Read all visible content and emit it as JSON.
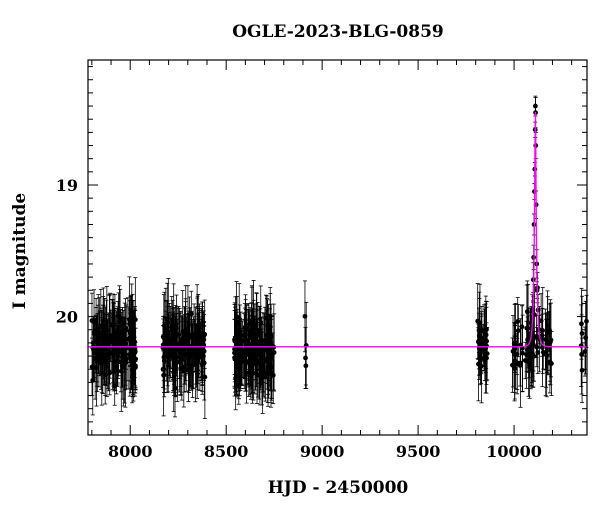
{
  "chart_data": {
    "type": "scatter",
    "title": "OGLE-2023-BLG-0859",
    "xlabel": "HJD - 2450000",
    "ylabel": "I magnitude",
    "xlim": [
      7780,
      10380
    ],
    "ylim": [
      20.9,
      18.05
    ],
    "y_inverted": true,
    "xticks": [
      8000,
      8500,
      9000,
      9500,
      10000
    ],
    "yticks": [
      19,
      20
    ],
    "grid": false,
    "colors": {
      "points": "#000000",
      "model": "#ff00ff"
    },
    "baseline_magnitude": 20.23,
    "seasons": [
      {
        "x_range": [
          7800,
          8030
        ],
        "count": 160
      },
      {
        "x_range": [
          8170,
          8390
        ],
        "count": 150
      },
      {
        "x_range": [
          8540,
          8750
        ],
        "count": 160
      },
      {
        "x_range": [
          8910,
          8920
        ],
        "count": 4
      },
      {
        "x_range": [
          9810,
          9860
        ],
        "count": 30
      },
      {
        "x_range": [
          9990,
          10200
        ],
        "count": 70
      },
      {
        "x_range": [
          10340,
          10380
        ],
        "count": 8
      }
    ],
    "event_points": [
      {
        "x": 10090,
        "y": 20.05
      },
      {
        "x": 10095,
        "y": 19.95
      },
      {
        "x": 10100,
        "y": 19.72
      },
      {
        "x": 10102,
        "y": 19.55
      },
      {
        "x": 10104,
        "y": 19.3
      },
      {
        "x": 10106,
        "y": 19.05
      },
      {
        "x": 10108,
        "y": 18.88
      },
      {
        "x": 10110,
        "y": 18.58
      },
      {
        "x": 10111,
        "y": 18.4
      },
      {
        "x": 10112,
        "y": 18.45
      },
      {
        "x": 10113,
        "y": 18.7
      },
      {
        "x": 10115,
        "y": 19.15
      },
      {
        "x": 10118,
        "y": 19.6
      },
      {
        "x": 10120,
        "y": 19.8
      },
      {
        "x": 10122,
        "y": 19.78
      },
      {
        "x": 10125,
        "y": 19.95
      },
      {
        "x": 10130,
        "y": 20.1
      },
      {
        "x": 10140,
        "y": 20.18
      }
    ],
    "model": {
      "t0": 10111,
      "peak_magnitude": 18.4,
      "baseline_magnitude": 20.23
    }
  }
}
